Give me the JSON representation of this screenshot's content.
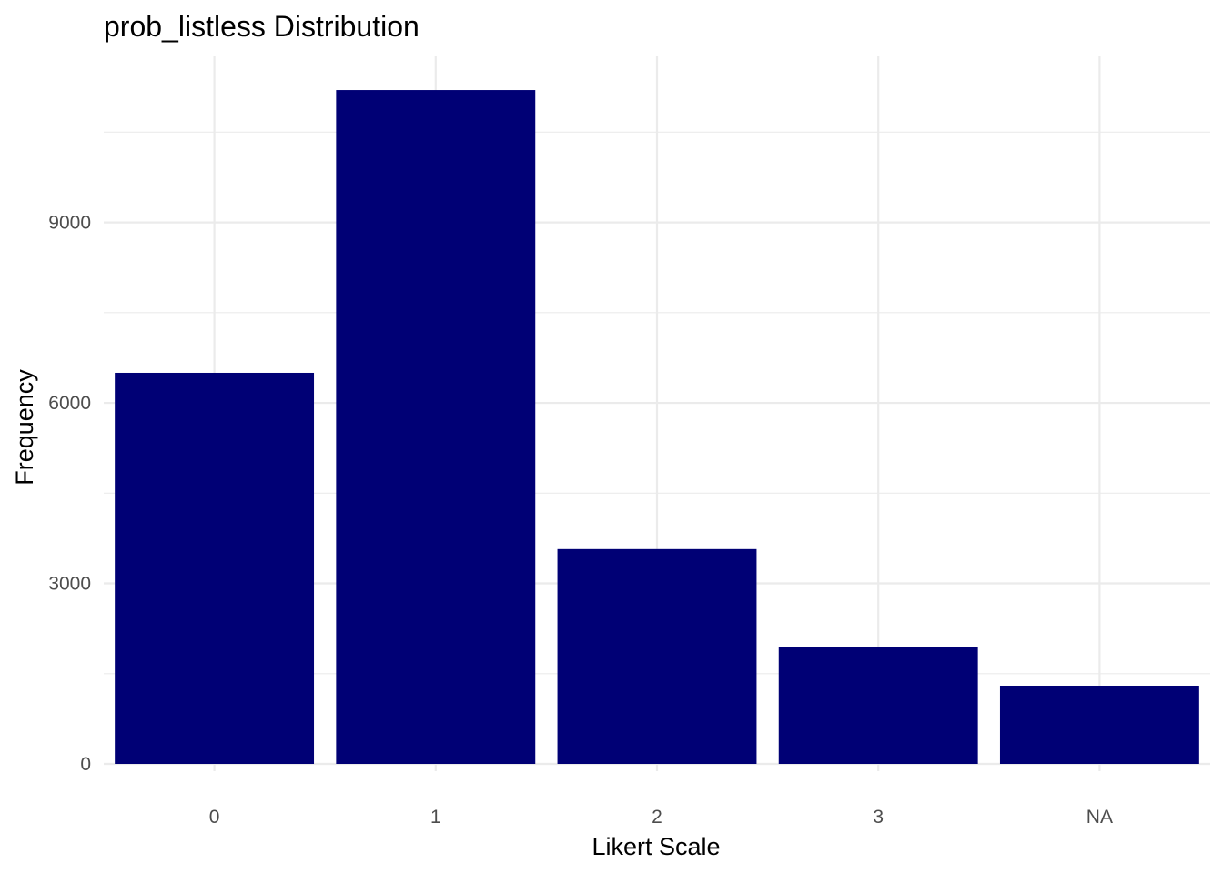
{
  "chart_data": {
    "type": "bar",
    "title": "prob_listless Distribution",
    "xlabel": "Likert Scale",
    "ylabel": "Frequency",
    "categories": [
      "0",
      "1",
      "2",
      "3",
      "NA"
    ],
    "values": [
      6500,
      11200,
      3570,
      1940,
      1300
    ],
    "ylim": [
      0,
      11760
    ],
    "yticks": [
      0,
      3000,
      6000,
      9000
    ],
    "y_minor_ticks": [
      1500,
      4500,
      7500,
      10500
    ],
    "grid": true,
    "legend": "none",
    "bar_color": "#000075",
    "grid_color": "#ebebeb"
  }
}
